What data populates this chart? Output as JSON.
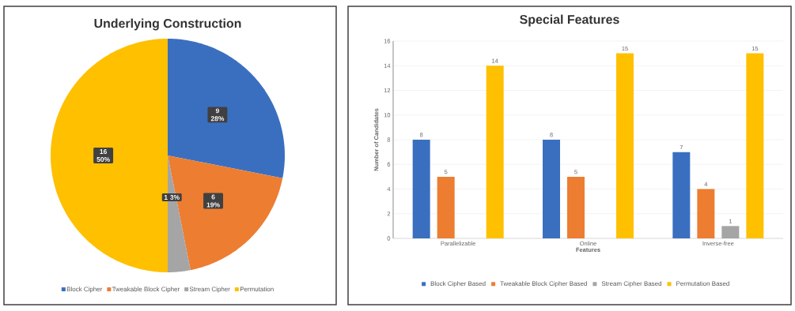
{
  "chart_data": [
    {
      "type": "pie",
      "title": "Underlying Construction",
      "categories": [
        "Block Cipher",
        "Tweakable Block Cipher",
        "Stream Cipher",
        "Permutation"
      ],
      "values": [
        9,
        6,
        1,
        16
      ],
      "colors": [
        "#3a6fc0",
        "#ed7d31",
        "#a5a5a5",
        "#ffc000"
      ],
      "value_labels": [
        "9 28%",
        "6 19%",
        "1 3%",
        "16 50%"
      ],
      "legend": "bottom"
    },
    {
      "type": "bar",
      "title": "Special Features",
      "xlabel": "Features",
      "ylabel": "Number of Candidates",
      "categories": [
        "Parallelizable",
        "Online",
        "Inverse-free"
      ],
      "series": [
        {
          "name": "Block Cipher Based",
          "color": "#3a6fc0",
          "values": [
            8,
            8,
            7
          ]
        },
        {
          "name": "Tweakable Block Cipher Based",
          "color": "#ed7d31",
          "values": [
            5,
            5,
            4
          ]
        },
        {
          "name": "Stream Cipher Based",
          "color": "#a5a5a5",
          "values": [
            null,
            null,
            1
          ]
        },
        {
          "name": "Permutation Based",
          "color": "#ffc000",
          "values": [
            14,
            15,
            15
          ]
        }
      ],
      "ylim": [
        0,
        16
      ],
      "yticks": [
        0,
        2,
        4,
        6,
        8,
        10,
        12,
        14,
        16
      ],
      "grid": "y",
      "legend": "bottom",
      "data_labels": true
    }
  ]
}
